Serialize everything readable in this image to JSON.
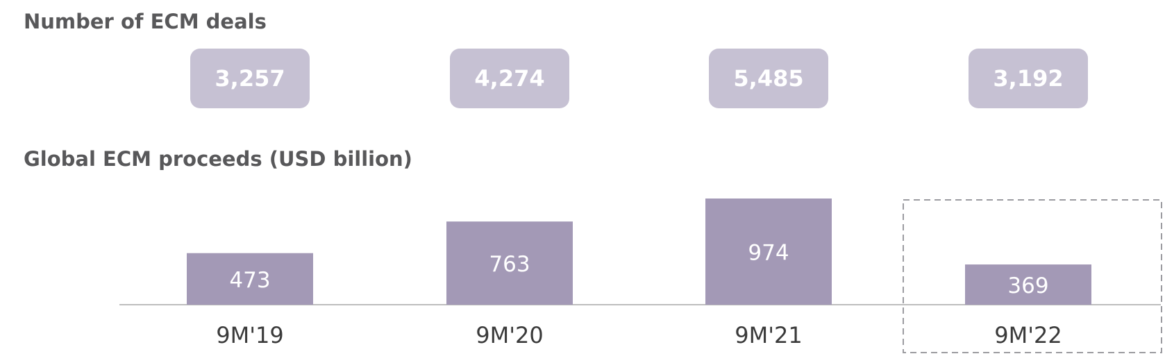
{
  "deals": {
    "title": "Number of ECM deals",
    "values": [
      "3,257",
      "4,274",
      "5,485",
      "3,192"
    ]
  },
  "chart_data": {
    "type": "bar",
    "title": "Global ECM proceeds (USD billion)",
    "categories": [
      "9M'19",
      "9M'20",
      "9M'21",
      "9M'22"
    ],
    "values": [
      473,
      763,
      974,
      369
    ],
    "highlight_category": "9M'22",
    "bar_color": "#a399b6",
    "label_color": "#ffffff"
  }
}
